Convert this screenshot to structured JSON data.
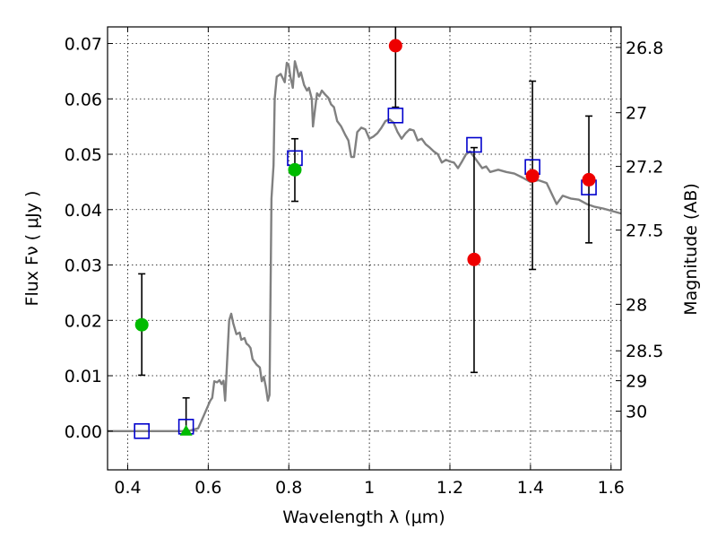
{
  "chart_data": {
    "type": "scatter",
    "xlabel": "Wavelength  λ (μm)",
    "ylabel": "Flux  Fν  ( μJy )",
    "y2label": "Magnitude (AB)",
    "xlim": [
      0.35,
      1.625
    ],
    "ylim": [
      -0.007,
      0.073
    ],
    "x_ticks": [
      0.4,
      0.6,
      0.8,
      1.0,
      1.2,
      1.4,
      1.6
    ],
    "x_tick_labels": [
      "0.4",
      "0.6",
      "0.8",
      "1",
      "1.2",
      "1.4",
      "1.6"
    ],
    "y_ticks": [
      0.0,
      0.01,
      0.02,
      0.03,
      0.04,
      0.05,
      0.06,
      0.07
    ],
    "y_tick_labels": [
      "0.00",
      "0.01",
      "0.02",
      "0.03",
      "0.04",
      "0.05",
      "0.06",
      "0.07"
    ],
    "y2_ticks": [
      {
        "label": "26.8",
        "flux": 0.0693
      },
      {
        "label": "27",
        "flux": 0.0575
      },
      {
        "label": "27.2",
        "flux": 0.0478
      },
      {
        "label": "27.5",
        "flux": 0.0363
      },
      {
        "label": "28",
        "flux": 0.0229
      },
      {
        "label": "28.5",
        "flux": 0.0145
      },
      {
        "label": "29",
        "flux": 0.0091
      },
      {
        "label": "30",
        "flux": 0.0036
      }
    ],
    "grid": true,
    "colors": {
      "model": "#808080",
      "green_points": "#00bb00",
      "red_points": "#ee0000",
      "model_boxes": "#0000cc",
      "errorbar": "#000000"
    },
    "series": [
      {
        "kind": "line",
        "points": [
          [
            0.35,
            0.0
          ],
          [
            0.52,
            0.0
          ],
          [
            0.55,
            0.0
          ],
          [
            0.575,
            0.0005
          ],
          [
            0.59,
            0.003
          ],
          [
            0.605,
            0.0055
          ],
          [
            0.61,
            0.006
          ],
          [
            0.615,
            0.009
          ],
          [
            0.622,
            0.0088
          ],
          [
            0.628,
            0.0092
          ],
          [
            0.633,
            0.0085
          ],
          [
            0.638,
            0.0091
          ],
          [
            0.642,
            0.0055
          ],
          [
            0.645,
            0.01
          ],
          [
            0.652,
            0.02
          ],
          [
            0.657,
            0.0212
          ],
          [
            0.662,
            0.0195
          ],
          [
            0.67,
            0.0175
          ],
          [
            0.678,
            0.0178
          ],
          [
            0.682,
            0.0165
          ],
          [
            0.69,
            0.0168
          ],
          [
            0.695,
            0.0158
          ],
          [
            0.7,
            0.0155
          ],
          [
            0.705,
            0.015
          ],
          [
            0.71,
            0.013
          ],
          [
            0.72,
            0.012
          ],
          [
            0.728,
            0.0115
          ],
          [
            0.733,
            0.009
          ],
          [
            0.738,
            0.0098
          ],
          [
            0.743,
            0.008
          ],
          [
            0.748,
            0.0055
          ],
          [
            0.752,
            0.0065
          ],
          [
            0.757,
            0.042
          ],
          [
            0.762,
            0.048
          ],
          [
            0.765,
            0.06
          ],
          [
            0.77,
            0.064
          ],
          [
            0.78,
            0.0645
          ],
          [
            0.79,
            0.063
          ],
          [
            0.795,
            0.0665
          ],
          [
            0.8,
            0.066
          ],
          [
            0.804,
            0.064
          ],
          [
            0.81,
            0.062
          ],
          [
            0.815,
            0.0668
          ],
          [
            0.82,
            0.0655
          ],
          [
            0.825,
            0.064
          ],
          [
            0.83,
            0.0648
          ],
          [
            0.838,
            0.0625
          ],
          [
            0.845,
            0.0615
          ],
          [
            0.85,
            0.062
          ],
          [
            0.857,
            0.06
          ],
          [
            0.86,
            0.055
          ],
          [
            0.865,
            0.058
          ],
          [
            0.87,
            0.061
          ],
          [
            0.876,
            0.0605
          ],
          [
            0.882,
            0.0615
          ],
          [
            0.89,
            0.0608
          ],
          [
            0.898,
            0.0602
          ],
          [
            0.905,
            0.059
          ],
          [
            0.912,
            0.0585
          ],
          [
            0.92,
            0.056
          ],
          [
            0.93,
            0.055
          ],
          [
            0.94,
            0.0535
          ],
          [
            0.948,
            0.0525
          ],
          [
            0.955,
            0.0495
          ],
          [
            0.962,
            0.0495
          ],
          [
            0.97,
            0.054
          ],
          [
            0.98,
            0.0548
          ],
          [
            0.99,
            0.0545
          ],
          [
            1.0,
            0.0528
          ],
          [
            1.01,
            0.0532
          ],
          [
            1.02,
            0.0538
          ],
          [
            1.03,
            0.0548
          ],
          [
            1.04,
            0.056
          ],
          [
            1.05,
            0.0563
          ],
          [
            1.06,
            0.0557
          ],
          [
            1.07,
            0.054
          ],
          [
            1.08,
            0.0528
          ],
          [
            1.09,
            0.0538
          ],
          [
            1.1,
            0.0545
          ],
          [
            1.11,
            0.0543
          ],
          [
            1.12,
            0.0525
          ],
          [
            1.13,
            0.0528
          ],
          [
            1.14,
            0.0518
          ],
          [
            1.15,
            0.0512
          ],
          [
            1.16,
            0.0505
          ],
          [
            1.17,
            0.05
          ],
          [
            1.18,
            0.0485
          ],
          [
            1.19,
            0.049
          ],
          [
            1.2,
            0.0487
          ],
          [
            1.21,
            0.0485
          ],
          [
            1.22,
            0.0475
          ],
          [
            1.23,
            0.0487
          ],
          [
            1.24,
            0.05
          ],
          [
            1.25,
            0.0505
          ],
          [
            1.26,
            0.0495
          ],
          [
            1.27,
            0.0485
          ],
          [
            1.28,
            0.0475
          ],
          [
            1.29,
            0.0478
          ],
          [
            1.3,
            0.0468
          ],
          [
            1.32,
            0.0472
          ],
          [
            1.34,
            0.0468
          ],
          [
            1.36,
            0.0465
          ],
          [
            1.38,
            0.0458
          ],
          [
            1.4,
            0.045
          ],
          [
            1.42,
            0.0453
          ],
          [
            1.44,
            0.0448
          ],
          [
            1.455,
            0.0425
          ],
          [
            1.465,
            0.041
          ],
          [
            1.48,
            0.0425
          ],
          [
            1.5,
            0.042
          ],
          [
            1.52,
            0.0418
          ],
          [
            1.54,
            0.041
          ],
          [
            1.56,
            0.0405
          ],
          [
            1.58,
            0.0402
          ],
          [
            1.6,
            0.0398
          ],
          [
            1.625,
            0.0393
          ]
        ]
      },
      {
        "kind": "squares",
        "x": [
          0.435,
          0.545,
          0.815,
          1.065,
          1.26,
          1.405,
          1.545
        ],
        "y": [
          0.0,
          0.0008,
          0.0493,
          0.057,
          0.0517,
          0.0477,
          0.044
        ]
      },
      {
        "kind": "green-points",
        "x": [
          0.435,
          0.815
        ],
        "y": [
          0.0192,
          0.0472
        ],
        "yerr_low": [
          0.0101,
          0.0415
        ],
        "yerr_high": [
          0.0284,
          0.0528
        ]
      },
      {
        "kind": "green-triangle",
        "x": [
          0.545
        ],
        "y": [
          0.0
        ],
        "yerr_low": [
          0.0
        ],
        "yerr_high": [
          0.006
        ]
      },
      {
        "kind": "red-points",
        "x": [
          1.065,
          1.26,
          1.405,
          1.545
        ],
        "y": [
          0.0696,
          0.031,
          0.0461,
          0.0454
        ],
        "yerr_low": [
          0.0585,
          0.0106,
          0.0292,
          0.034
        ],
        "yerr_high": [
          0.0735,
          0.0512,
          0.0632,
          0.0569
        ]
      }
    ]
  }
}
